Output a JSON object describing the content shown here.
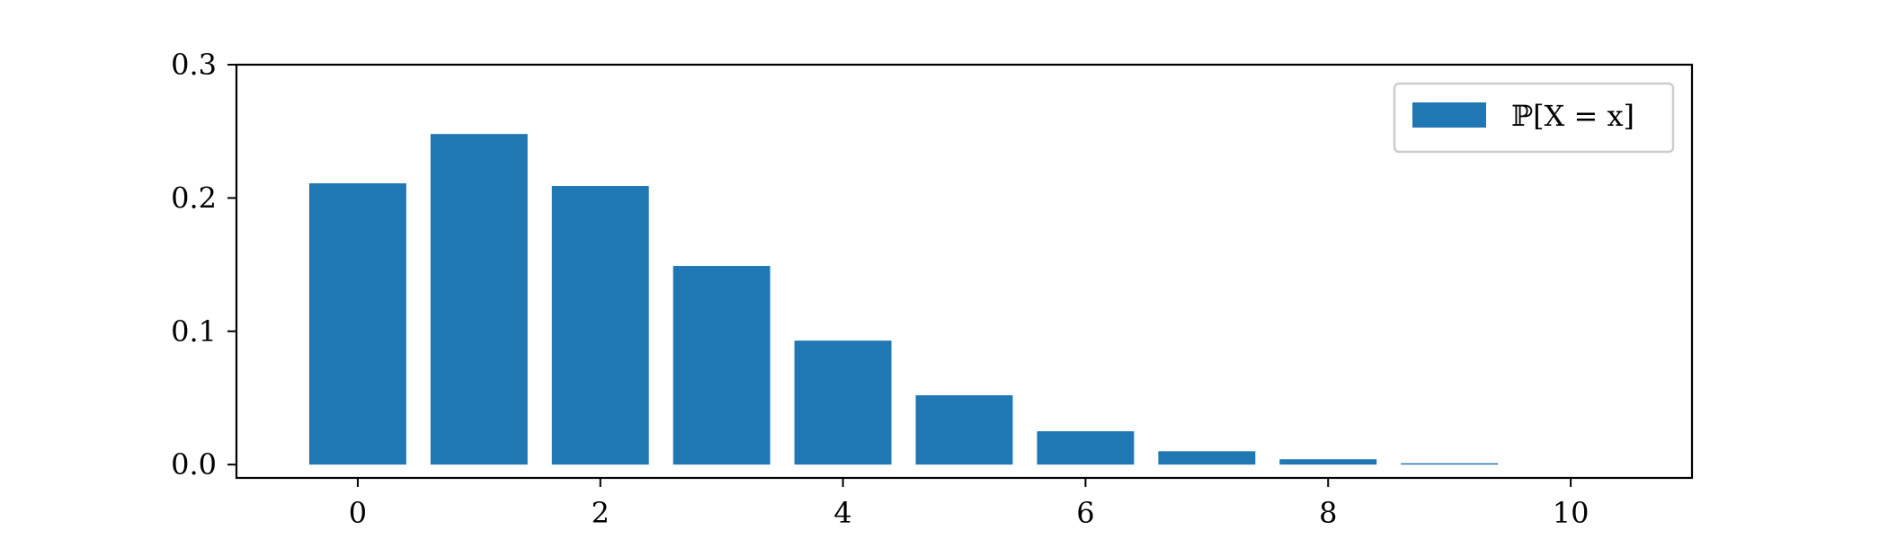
{
  "chart_data": {
    "type": "bar",
    "x": [
      0,
      1,
      2,
      3,
      4,
      5,
      6,
      7,
      8,
      9
    ],
    "values": [
      0.211,
      0.248,
      0.209,
      0.149,
      0.093,
      0.052,
      0.025,
      0.01,
      0.004,
      0.001
    ],
    "series": [
      {
        "name": "ℙ[X = x]",
        "values": [
          0.211,
          0.248,
          0.209,
          0.149,
          0.093,
          0.052,
          0.025,
          0.01,
          0.004,
          0.001
        ]
      }
    ],
    "xlim": [
      -1,
      11
    ],
    "ylim": [
      -0.01,
      0.3
    ],
    "xticks": [
      0,
      2,
      4,
      6,
      8,
      10
    ],
    "xtick_labels": [
      "0",
      "2",
      "4",
      "6",
      "8",
      "10"
    ],
    "yticks": [
      0.0,
      0.1,
      0.2,
      0.3
    ],
    "ytick_labels": [
      "0.0",
      "0.1",
      "0.2",
      "0.3"
    ],
    "bar_width": 0.8,
    "color": "#1f77b4",
    "grid": false,
    "legend": {
      "placement": "top-right",
      "label": "ℙ[X = x]"
    },
    "title": "",
    "xlabel": "",
    "ylabel": ""
  }
}
